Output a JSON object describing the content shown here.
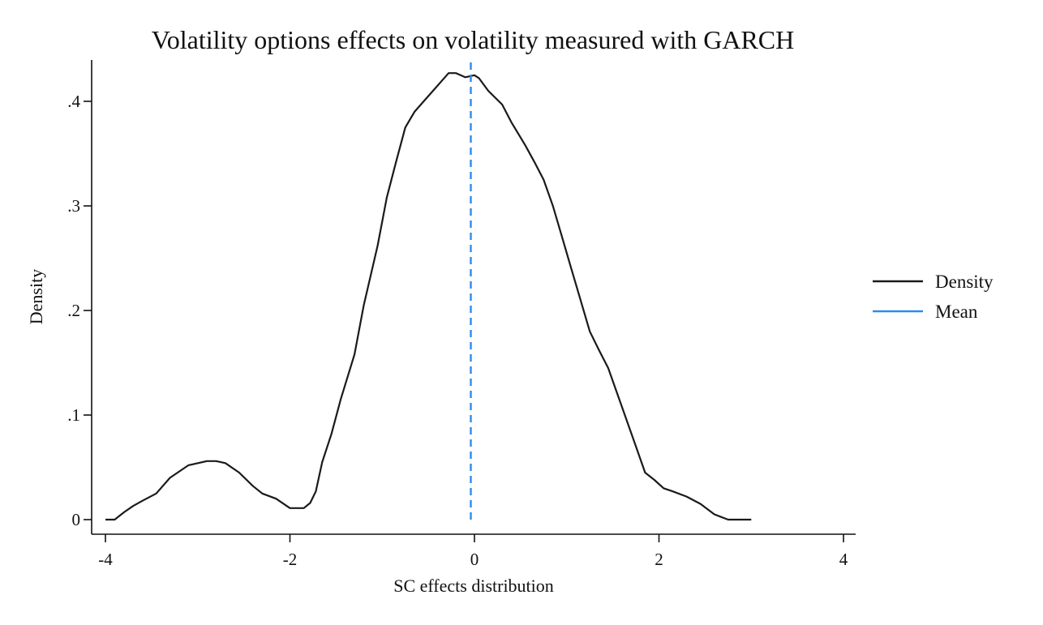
{
  "chart_data": {
    "type": "line",
    "title": "Volatility options effects on volatility measured with GARCH",
    "xlabel": "SC effects distribution",
    "ylabel": "Density",
    "xlim": [
      -4,
      4
    ],
    "ylim": [
      0,
      0.43
    ],
    "x_ticks": [
      -4,
      -2,
      0,
      2,
      4
    ],
    "x_tick_labels": [
      "-4",
      "-2",
      "0",
      "2",
      "4"
    ],
    "y_ticks": [
      0,
      0.1,
      0.2,
      0.3,
      0.4
    ],
    "y_tick_labels": [
      "0",
      ".1",
      ".2",
      ".3",
      ".4"
    ],
    "grid": false,
    "legend_position": "right",
    "series": [
      {
        "name": "Density",
        "color": "#1a1a1a",
        "style": "solid",
        "x": [
          -4.0,
          -3.9,
          -3.8,
          -3.7,
          -3.6,
          -3.45,
          -3.3,
          -3.1,
          -2.9,
          -2.8,
          -2.7,
          -2.55,
          -2.4,
          -2.3,
          -2.15,
          -2.0,
          -1.93,
          -1.85,
          -1.78,
          -1.72,
          -1.65,
          -1.55,
          -1.45,
          -1.3,
          -1.2,
          -1.05,
          -0.95,
          -0.85,
          -0.75,
          -0.65,
          -0.55,
          -0.45,
          -0.35,
          -0.28,
          -0.2,
          -0.1,
          0.0,
          0.05,
          0.15,
          0.3,
          0.4,
          0.55,
          0.65,
          0.75,
          0.85,
          0.95,
          1.05,
          1.15,
          1.25,
          1.35,
          1.45,
          1.55,
          1.65,
          1.75,
          1.85,
          1.95,
          2.05,
          2.15,
          2.3,
          2.45,
          2.6,
          2.75,
          2.85,
          3.0
        ],
        "y": [
          0.0,
          0.0,
          0.007,
          0.013,
          0.018,
          0.025,
          0.04,
          0.052,
          0.056,
          0.056,
          0.054,
          0.045,
          0.032,
          0.025,
          0.02,
          0.011,
          0.011,
          0.011,
          0.016,
          0.027,
          0.055,
          0.082,
          0.115,
          0.158,
          0.205,
          0.262,
          0.308,
          0.342,
          0.375,
          0.39,
          0.4,
          0.41,
          0.42,
          0.427,
          0.427,
          0.423,
          0.425,
          0.422,
          0.41,
          0.397,
          0.38,
          0.358,
          0.342,
          0.325,
          0.3,
          0.27,
          0.24,
          0.21,
          0.18,
          0.162,
          0.145,
          0.12,
          0.095,
          0.07,
          0.045,
          0.038,
          0.03,
          0.027,
          0.022,
          0.015,
          0.005,
          0.0,
          0.0,
          0.0
        ]
      },
      {
        "name": "Mean",
        "color": "#2b8cf0",
        "style": "dashed",
        "x": [
          -0.04,
          -0.04
        ],
        "y": [
          0,
          0.43
        ]
      }
    ]
  }
}
